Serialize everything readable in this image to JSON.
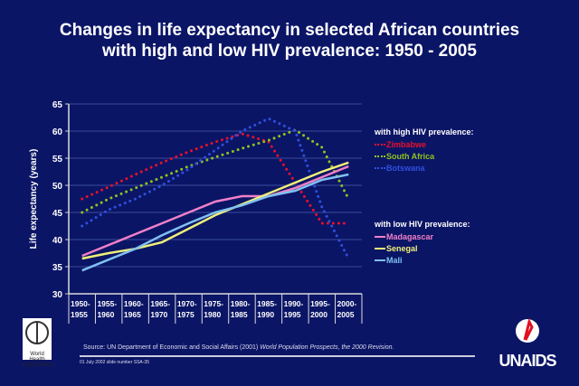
{
  "title_line1": "Changes in life expectancy in selected African countries",
  "title_line2": "with high and low HIV prevalence: 1950 - 2005",
  "footer": {
    "source_prefix": "Source:  UN Department of Economic and Social Affairs (2001) ",
    "source_italic": "World Population Prospects, the 2000 Revision.",
    "date": "01 July 2002 slide number SSA-35",
    "who_logo": "World Health Organization",
    "unaids_logo": "UNAIDS"
  },
  "chart_data": {
    "type": "line",
    "title": "",
    "ylabel": "Life expectancy (years)",
    "xlabel": "",
    "ylim": [
      30,
      65
    ],
    "yticks": [
      30,
      35,
      40,
      45,
      50,
      55,
      60,
      65
    ],
    "grid": true,
    "legend_position": "right",
    "categories": [
      "1950-1955",
      "1955-1960",
      "1960-1965",
      "1965-1970",
      "1970-1975",
      "1975-1980",
      "1980-1985",
      "1985-1990",
      "1990-1995",
      "1995-2000",
      "2000-2005"
    ],
    "legend_groups": [
      "with high HIV prevalence:",
      "with low HIV prevalence:"
    ],
    "series": [
      {
        "name": "Zimbabwe",
        "group": 0,
        "style": "dotted",
        "color": "#e8102a",
        "values": [
          47.5,
          49.7,
          52,
          54.2,
          56.2,
          58,
          59.5,
          58,
          50.5,
          43,
          43
        ]
      },
      {
        "name": "South Africa",
        "group": 0,
        "style": "dotted",
        "color": "#8fc41c",
        "values": [
          45,
          47.5,
          49.5,
          51.5,
          53.5,
          55.2,
          56.8,
          58.3,
          60.2,
          57,
          47.5
        ]
      },
      {
        "name": "Botswana",
        "group": 0,
        "style": "dotted",
        "color": "#2f4fe0",
        "values": [
          42.5,
          45.5,
          47.5,
          50,
          53,
          56.5,
          60,
          62.3,
          60,
          46,
          36.5
        ]
      },
      {
        "name": "Madagascar",
        "group": 1,
        "style": "solid",
        "color": "#f080c8",
        "values": [
          37,
          39,
          41,
          43,
          45,
          47,
          48,
          48,
          49.5,
          51.5,
          53.5
        ]
      },
      {
        "name": "Senegal",
        "group": 1,
        "style": "solid",
        "color": "#f0f078",
        "values": [
          36.5,
          37.5,
          38.3,
          39.5,
          42,
          44.5,
          46.5,
          48.5,
          50.5,
          52.5,
          54.2
        ]
      },
      {
        "name": "Mali",
        "group": 1,
        "style": "solid",
        "color": "#80c0f0",
        "values": [
          34.3,
          36.3,
          38.3,
          40.8,
          43,
          45,
          46.3,
          48,
          49,
          51,
          52
        ]
      }
    ]
  }
}
